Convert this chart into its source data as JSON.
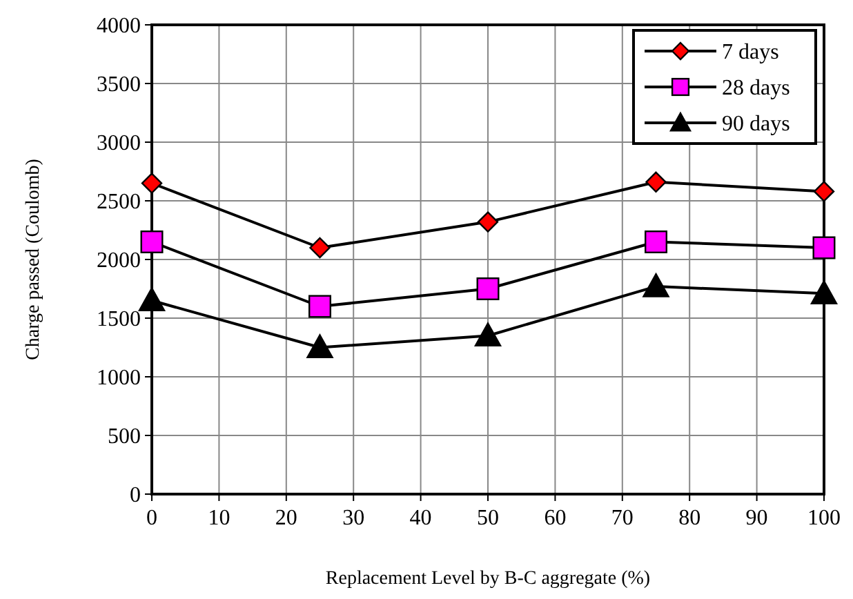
{
  "chart_data": {
    "type": "line",
    "xlabel": "Replacement Level by B-C aggregate (%)",
    "ylabel": "Charge passed (Coulomb)",
    "x": [
      0,
      25,
      50,
      75,
      100
    ],
    "series": [
      {
        "name": "7 days",
        "color": "#ff0000",
        "marker": "diamond",
        "values": [
          2650,
          2100,
          2320,
          2660,
          2580
        ]
      },
      {
        "name": "28 days",
        "color": "#ff00ff",
        "marker": "square",
        "values": [
          2150,
          1600,
          1750,
          2150,
          2100
        ]
      },
      {
        "name": "90 days",
        "color": "#000000",
        "marker": "triangle",
        "values": [
          1650,
          1250,
          1350,
          1770,
          1710
        ]
      }
    ],
    "xlim": [
      0,
      100
    ],
    "xticks": [
      0,
      10,
      20,
      30,
      40,
      50,
      60,
      70,
      80,
      90,
      100
    ],
    "ylim": [
      0,
      4000
    ],
    "yticks": [
      0,
      500,
      1000,
      1500,
      2000,
      2500,
      3000,
      3500,
      4000
    ],
    "grid": true,
    "legend": "top right"
  }
}
